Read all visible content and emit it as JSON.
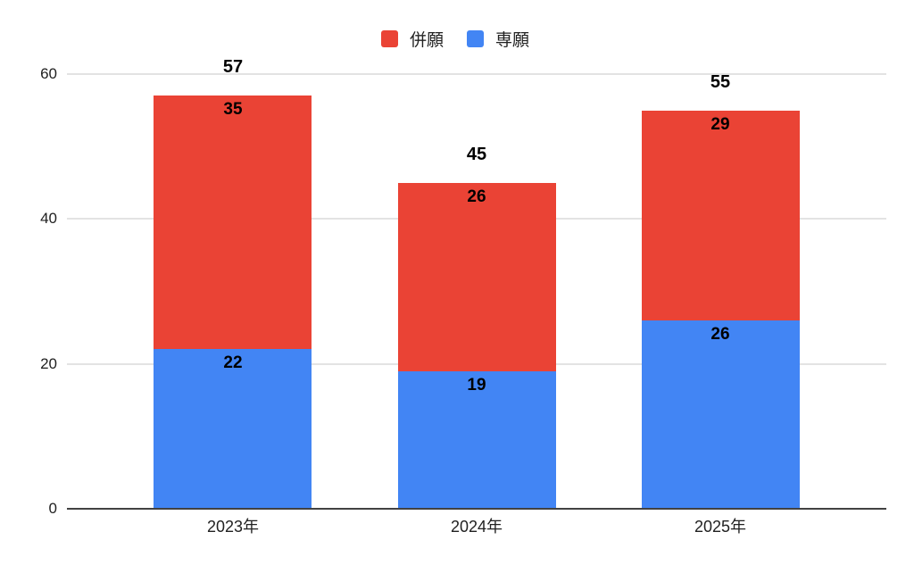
{
  "chart_data": {
    "type": "bar",
    "stacked": true,
    "title": "",
    "xlabel": "",
    "ylabel": "",
    "categories": [
      "2023年",
      "2024年",
      "2025年"
    ],
    "series": [
      {
        "name": "専願",
        "color": "#4285F4",
        "values": [
          22,
          19,
          26
        ]
      },
      {
        "name": "併願",
        "color": "#EA4335",
        "values": [
          35,
          26,
          29
        ]
      }
    ],
    "totals": [
      57,
      45,
      55
    ],
    "ylim": [
      0,
      60
    ],
    "yticks": [
      0,
      20,
      40,
      60
    ],
    "grid": true,
    "legend_position": "top",
    "colors": {
      "gridline": "#e3e3e3",
      "axis_line": "#424242",
      "tick_text": "#212121",
      "value_text": "#000000"
    }
  },
  "legend": {
    "items": [
      {
        "label": "併願",
        "color": "#EA4335"
      },
      {
        "label": "専願",
        "color": "#4285F4"
      }
    ]
  }
}
